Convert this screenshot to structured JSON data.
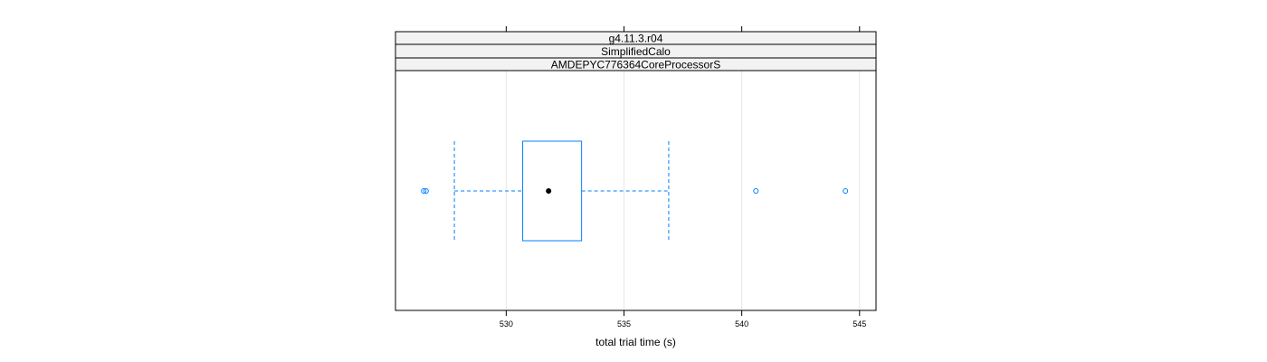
{
  "chart_data": {
    "type": "boxplot",
    "strips": [
      "g4.11.3.r04",
      "SimplifiedCalo",
      "AMDEPYC776364CoreProcessorS"
    ],
    "xlabel": "total trial time (s)",
    "ylabel": "",
    "xlim": [
      525.3,
      545.7
    ],
    "xticks": [
      530,
      535,
      540,
      545
    ],
    "grid": true,
    "box": {
      "whisker_low": 527.8,
      "q1": 530.7,
      "median": 531.8,
      "q3": 533.2,
      "whisker_high": 536.9
    },
    "outliers": [
      526.5,
      526.6,
      540.6,
      544.4
    ],
    "colors": {
      "box": "#0080ff",
      "median_dot": "#000000",
      "strip_bg": "#f2f2f2",
      "grid": "#e6e6e6"
    }
  }
}
